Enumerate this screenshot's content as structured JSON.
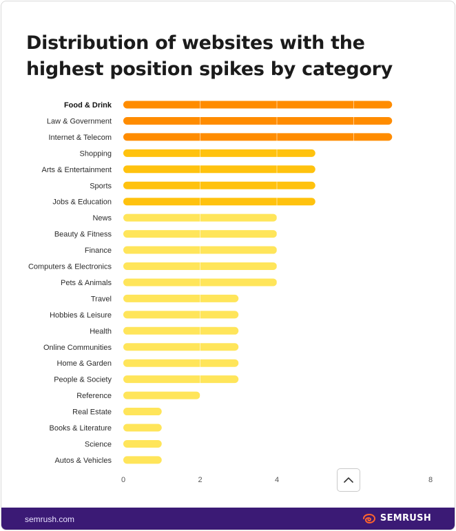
{
  "title": "Distribution of websites with the highest position spikes by category",
  "footer": {
    "url": "semrush.com",
    "brand": "SEMRUSH"
  },
  "colors": {
    "top": "#ff8c00",
    "mid": "#ffc20e",
    "low": "#ffe55a",
    "footer_bg": "#3b1a75",
    "brand_accent": "#ff642d"
  },
  "icons": {
    "scroll_top": "chevron-up-icon",
    "brand_logo": "semrush-flame-icon"
  },
  "chart_data": {
    "type": "bar",
    "orientation": "horizontal",
    "title": "Distribution of websites with the highest position spikes by category",
    "categories": [
      "Food & Drink",
      "Law & Government",
      "Internet & Telecom",
      "Shopping",
      "Arts & Entertainment",
      "Sports",
      "Jobs & Education",
      "News",
      "Beauty & Fitness",
      "Finance",
      "Computers & Electronics",
      "Pets & Animals",
      "Travel",
      "Hobbies & Leisure",
      "Health",
      "Online Communities",
      "Home & Garden",
      "People & Society",
      "Reference",
      "Real Estate",
      "Books & Literature",
      "Science",
      "Autos & Vehicles"
    ],
    "values": [
      7,
      7,
      7,
      5,
      5,
      5,
      5,
      4,
      4,
      4,
      4,
      4,
      3,
      3,
      3,
      3,
      3,
      3,
      2,
      1,
      1,
      1,
      1
    ],
    "xlim": [
      0,
      8
    ],
    "xticks": [
      "0",
      "2",
      "4",
      "",
      "8"
    ],
    "bold_category": "Food & Drink",
    "grid": false,
    "legend": "none"
  }
}
